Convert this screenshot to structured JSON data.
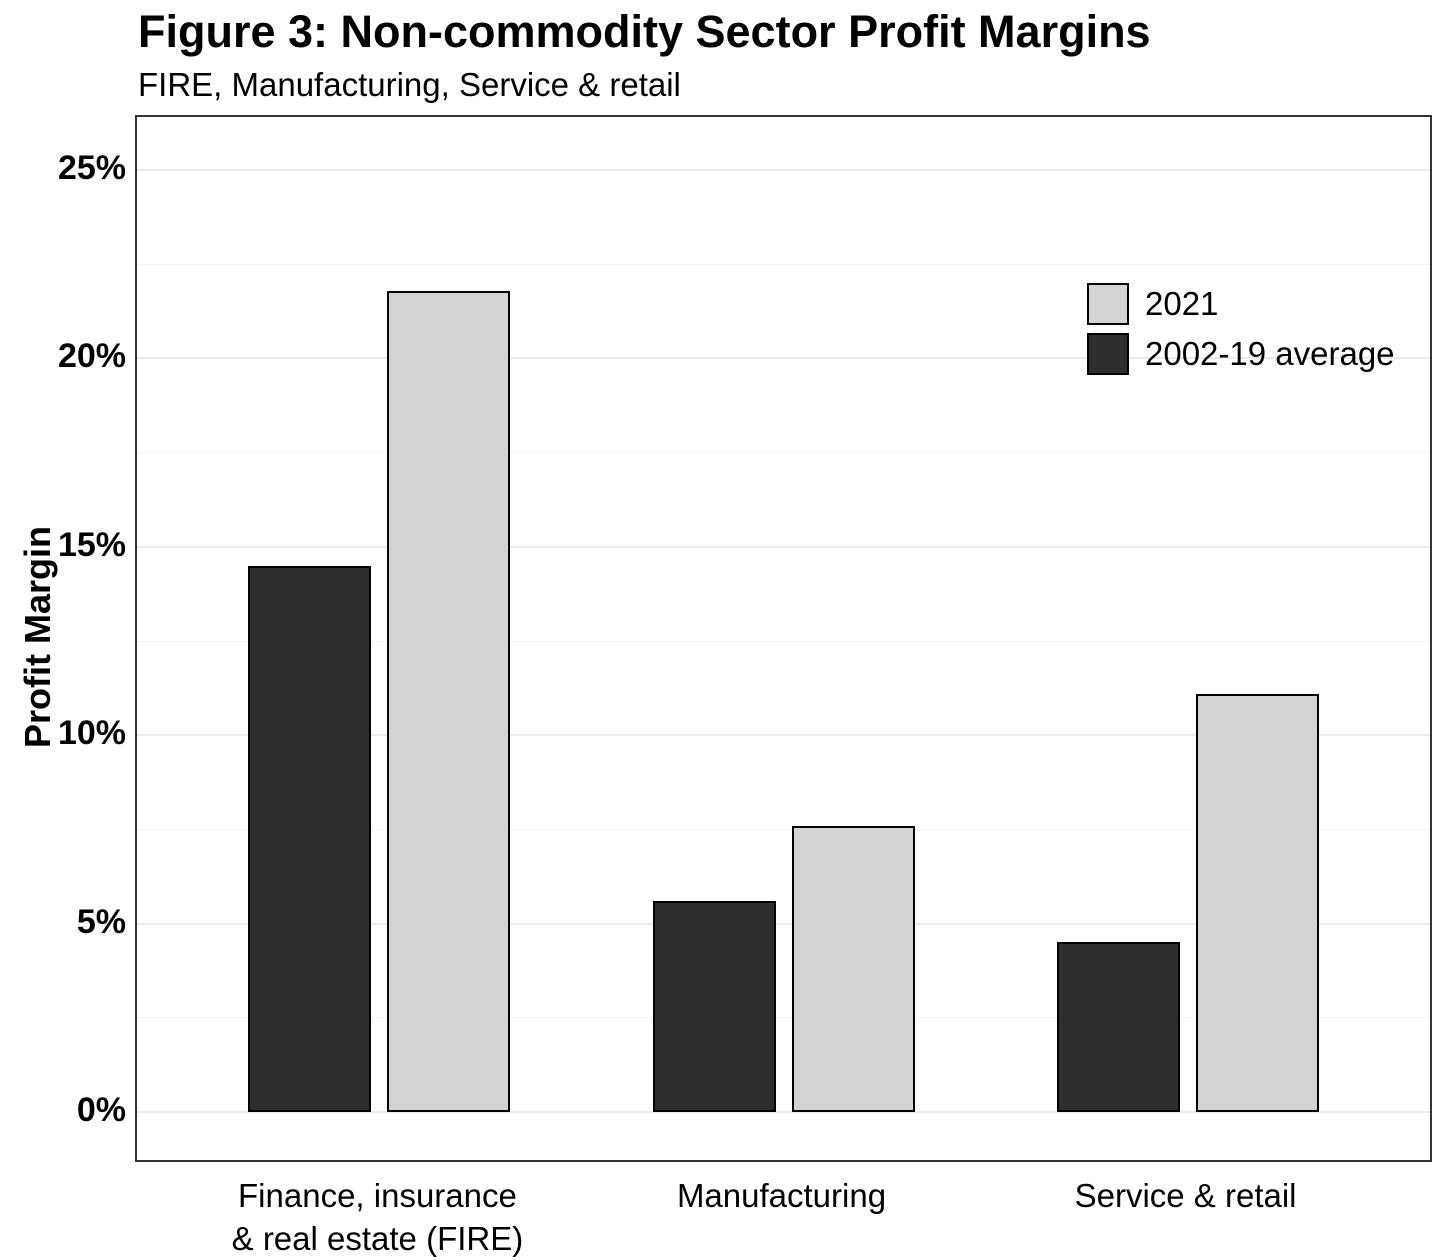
{
  "chart_data": {
    "type": "bar",
    "title": "Figure 3: Non-commodity Sector Profit Margins",
    "subtitle": "FIRE, Manufacturing, Service & retail",
    "xlabel": "",
    "ylabel": "Profit Margin",
    "ylim": [
      0,
      25
    ],
    "yticks": [
      0,
      5,
      10,
      15,
      20,
      25
    ],
    "ytick_labels": [
      "0%",
      "5%",
      "10%",
      "15%",
      "20%",
      "25%"
    ],
    "yticks_minor": [
      2.5,
      7.5,
      12.5,
      17.5,
      22.5
    ],
    "grid": "on",
    "categories": [
      "Finance, insurance & real estate (FIRE)",
      "Manufacturing",
      "Service & retail"
    ],
    "category_label_lines": [
      [
        "Finance, insurance",
        "& real estate (FIRE)"
      ],
      [
        "Manufacturing"
      ],
      [
        "Service & retail"
      ]
    ],
    "series": [
      {
        "name": "2002-19 average",
        "color": "#2e2e2e",
        "values": [
          14.5,
          5.6,
          4.5
        ]
      },
      {
        "name": "2021",
        "color": "#d3d3d3",
        "values": [
          21.8,
          7.6,
          11.1
        ]
      }
    ],
    "legend": {
      "position": "top-right",
      "order": [
        "2021",
        "2002-19 average"
      ]
    },
    "units": "percent"
  },
  "colors": {
    "bar_2021": "#d3d3d3",
    "bar_2002_19_average": "#2e2e2e",
    "bar_border": "#000000",
    "panel_border": "#333333",
    "grid_major": "#ebebeb",
    "grid_minor": "#f4f4f4",
    "background": "#ffffff",
    "text": "#000000"
  }
}
